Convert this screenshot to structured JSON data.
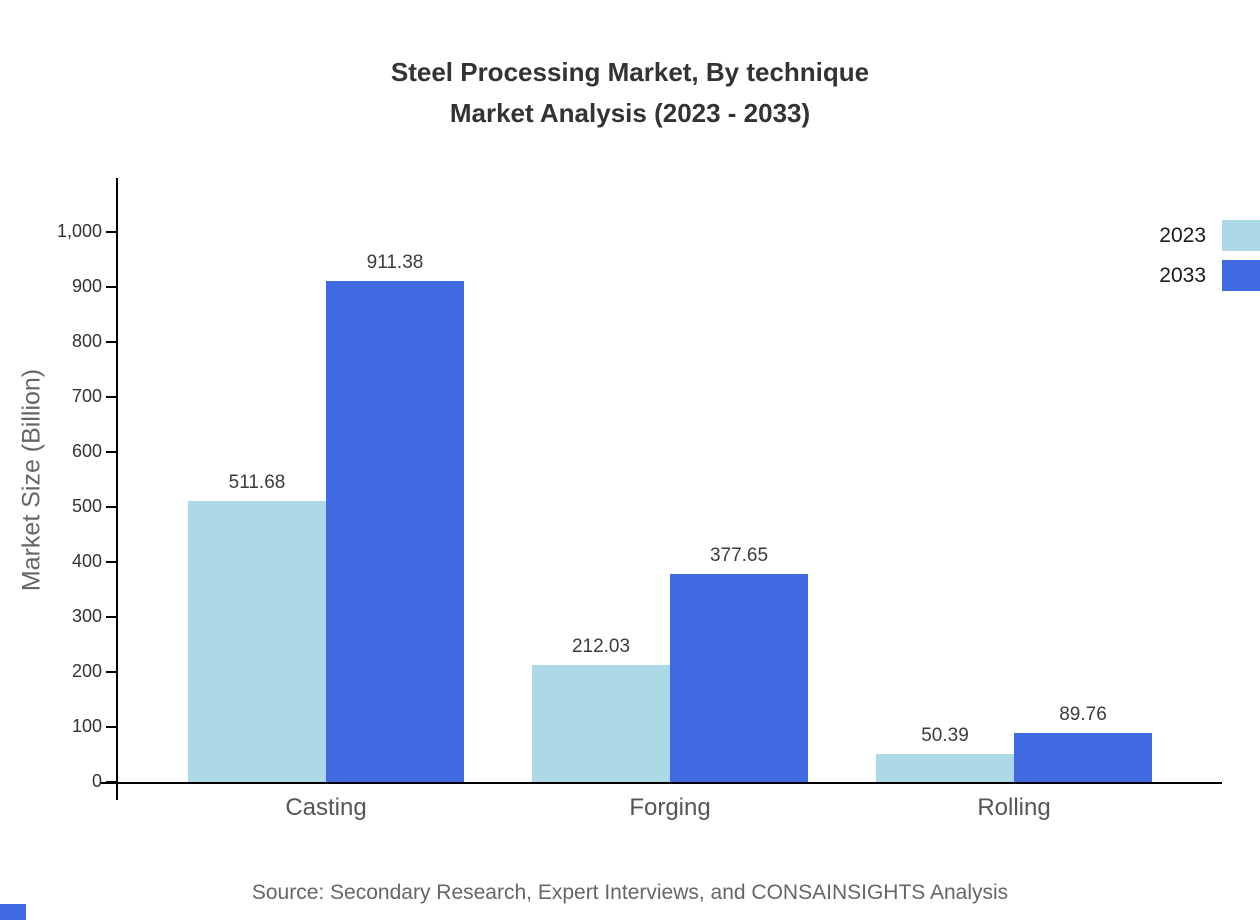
{
  "title": {
    "line1": "Steel Processing Market, By technique",
    "line2": "Market Analysis (2023 - 2033)"
  },
  "source": "Source: Secondary Research, Expert Interviews, and CONSAINSIGHTS Analysis",
  "chart_data": {
    "type": "bar",
    "title": "Steel Processing Market, By technique Market Analysis (2023 - 2033)",
    "categories": [
      "Casting",
      "Forging",
      "Rolling"
    ],
    "series": [
      {
        "name": "2023",
        "color": "#add8e6",
        "values": [
          511.68,
          212.03,
          50.39
        ]
      },
      {
        "name": "2033",
        "color": "#4169e1",
        "values": [
          911.38,
          377.65,
          89.76
        ]
      }
    ],
    "value_labels": [
      "511.68",
      "911.38",
      "212.03",
      "377.65",
      "50.39",
      "89.76"
    ],
    "xlabel": "",
    "ylabel": "Market Size (Billion)",
    "ylim": [
      0,
      1000
    ],
    "yticks": [
      0,
      100,
      200,
      300,
      400,
      500,
      600,
      700,
      800,
      900,
      1000
    ],
    "ytick_labels": [
      "0",
      "100",
      "200",
      "300",
      "400",
      "500",
      "600",
      "700",
      "800",
      "900",
      "1,000"
    ],
    "grid": false,
    "legend_position": "top-right"
  }
}
